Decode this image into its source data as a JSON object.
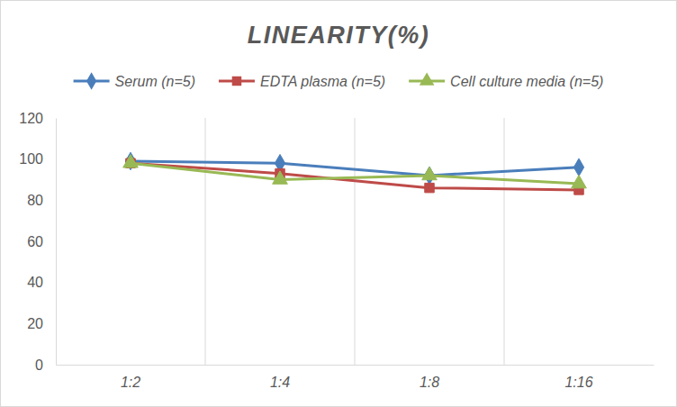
{
  "chart_data": {
    "type": "line",
    "title": "LINEARITY(%)",
    "categories": [
      "1:2",
      "1:4",
      "1:8",
      "1:16"
    ],
    "series": [
      {
        "name": "Serum (n=5)",
        "color": "#4a7ebb",
        "marker": "diamond",
        "values": [
          99,
          98,
          92,
          96
        ]
      },
      {
        "name": "EDTA plasma (n=5)",
        "color": "#be4b48",
        "marker": "square",
        "values": [
          98,
          93,
          86,
          85
        ]
      },
      {
        "name": "Cell culture media (n=5)",
        "color": "#98b954",
        "marker": "triangle",
        "values": [
          98,
          90,
          92,
          88
        ]
      }
    ],
    "ylim": [
      0,
      120
    ],
    "yticks": [
      0,
      20,
      40,
      60,
      80,
      100,
      120
    ],
    "legend": "top"
  }
}
